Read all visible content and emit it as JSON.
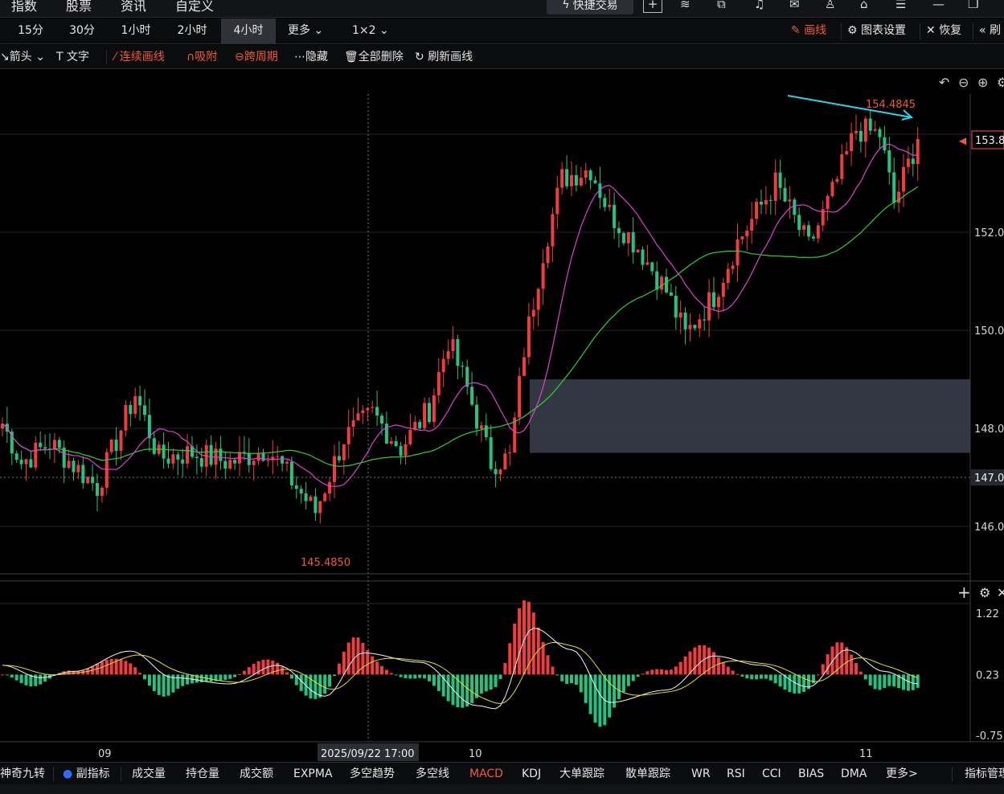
{
  "top_nav": {
    "items": [
      "指数",
      "股票",
      "资讯",
      "自定义"
    ],
    "quick_trade": "快捷交易"
  },
  "periods": {
    "items": [
      "15分",
      "30分",
      "1小时",
      "2小时",
      "4小时",
      "更多",
      "1×2"
    ],
    "active": "4小时"
  },
  "right_tools": {
    "draw": "画线",
    "chart_settings": "图表设置",
    "restore": "恢复",
    "partial": "刷"
  },
  "draw_tools": {
    "arrow": "箭头",
    "text": "文字",
    "continuous": "连续画线",
    "snap": "吸附",
    "cross_period": "跨周期",
    "hide": "隐藏",
    "delete_all": "全部删除",
    "refresh": "刷新画线"
  },
  "colors": {
    "up": "#f23c3c",
    "down": "#26c281",
    "ma_fast": "#e040d0",
    "ma_slow": "#2ed12e",
    "accent": "#f05a3c",
    "zone": "#3a3e4a",
    "trendline": "#29d3e8"
  },
  "chart_data": {
    "type": "candlestick",
    "price_axis_labels": [
      "154.4845",
      "153.8",
      "152.0",
      "150.0",
      "148.0",
      "147.0",
      "146.0"
    ],
    "y_ticks": [
      146.0,
      148.0,
      150.0,
      152.0
    ],
    "current_price_label": "153.8",
    "crosshair_price_label": "147.0",
    "crosshair_time_label": "2025/09/22 17:00",
    "high_label": "154.4845",
    "low_label": "145.4850",
    "x_labels": [
      "09",
      "10",
      "11"
    ],
    "zone": {
      "from": 147.5,
      "to": 149.0
    },
    "anchors": [
      {
        "i": 0,
        "p": 148.1
      },
      {
        "i": 4,
        "p": 147.3
      },
      {
        "i": 10,
        "p": 147.7
      },
      {
        "i": 20,
        "p": 146.8
      },
      {
        "i": 28,
        "p": 148.7
      },
      {
        "i": 33,
        "p": 147.4
      },
      {
        "i": 40,
        "p": 147.5
      },
      {
        "i": 48,
        "p": 147.3
      },
      {
        "i": 56,
        "p": 147.6
      },
      {
        "i": 62,
        "p": 146.8
      },
      {
        "i": 66,
        "p": 146.3
      },
      {
        "i": 72,
        "p": 147.8
      },
      {
        "i": 78,
        "p": 148.3
      },
      {
        "i": 84,
        "p": 147.6
      },
      {
        "i": 90,
        "p": 148.4
      },
      {
        "i": 94,
        "p": 149.8
      },
      {
        "i": 98,
        "p": 148.8
      },
      {
        "i": 103,
        "p": 147.3
      },
      {
        "i": 107,
        "p": 147.4
      },
      {
        "i": 110,
        "p": 149.6
      },
      {
        "i": 114,
        "p": 151.6
      },
      {
        "i": 118,
        "p": 153.1
      },
      {
        "i": 124,
        "p": 153.3
      },
      {
        "i": 128,
        "p": 152.4
      },
      {
        "i": 134,
        "p": 151.7
      },
      {
        "i": 140,
        "p": 150.8
      },
      {
        "i": 144,
        "p": 149.9
      },
      {
        "i": 150,
        "p": 150.7
      },
      {
        "i": 155,
        "p": 151.8
      },
      {
        "i": 163,
        "p": 153.0
      },
      {
        "i": 170,
        "p": 151.7
      },
      {
        "i": 175,
        "p": 152.8
      },
      {
        "i": 180,
        "p": 154.1
      },
      {
        "i": 185,
        "p": 154.0
      },
      {
        "i": 188,
        "p": 152.6
      },
      {
        "i": 193,
        "p": 153.9
      }
    ],
    "macd": {
      "name": "MACD",
      "y_labels": [
        "1.22",
        "0.23",
        "-0.75"
      ],
      "y_ticks": [
        1.22,
        0.23,
        -0.75
      ],
      "anchors": [
        {
          "i": 0,
          "v": 0.15
        },
        {
          "i": 8,
          "v": -0.05
        },
        {
          "i": 15,
          "v": 0.05
        },
        {
          "i": 27,
          "v": 0.38
        },
        {
          "i": 36,
          "v": -0.05
        },
        {
          "i": 48,
          "v": -0.15
        },
        {
          "i": 58,
          "v": 0.15
        },
        {
          "i": 68,
          "v": -0.35
        },
        {
          "i": 76,
          "v": 0.35
        },
        {
          "i": 88,
          "v": 0.2
        },
        {
          "i": 100,
          "v": -0.5
        },
        {
          "i": 104,
          "v": -0.55
        },
        {
          "i": 112,
          "v": 0.75
        },
        {
          "i": 120,
          "v": 0.4
        },
        {
          "i": 128,
          "v": -0.45
        },
        {
          "i": 140,
          "v": -0.25
        },
        {
          "i": 150,
          "v": 0.3
        },
        {
          "i": 160,
          "v": 0.15
        },
        {
          "i": 170,
          "v": -0.2
        },
        {
          "i": 178,
          "v": 0.4
        },
        {
          "i": 186,
          "v": 0.05
        },
        {
          "i": 193,
          "v": -0.15
        }
      ]
    }
  },
  "bottom_tabs": {
    "items": [
      "神奇九转",
      "副指标",
      "成交量",
      "持仓量",
      "成交额",
      "EXPMA",
      "多空趋势",
      "多空线",
      "MACD",
      "KDJ",
      "大单跟踪",
      "散单跟踪",
      "WR",
      "RSI",
      "CCI",
      "BIAS",
      "DMA",
      "更多>"
    ],
    "active": "MACD",
    "manage": "指标管理"
  }
}
